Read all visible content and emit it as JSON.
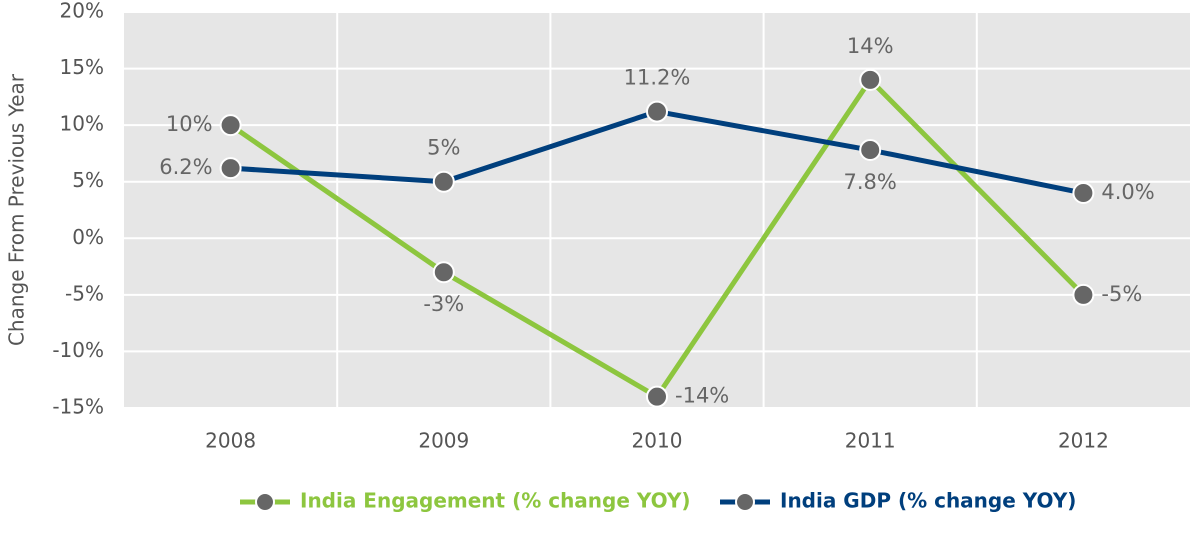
{
  "chart_data": {
    "type": "line",
    "y_label": "Change From Previous Year",
    "categories": [
      "2008",
      "2009",
      "2010",
      "2011",
      "2012"
    ],
    "series": [
      {
        "name": "India Engagement (% change YOY)",
        "color": "#8dc63f",
        "values": [
          10,
          -3,
          -14,
          14,
          -5
        ],
        "value_labels": [
          "10%",
          "-3%",
          "-14%",
          "14%",
          "-5%"
        ]
      },
      {
        "name": "India GDP (% change YOY)",
        "color": "#003f7d",
        "values": [
          6.2,
          5,
          11.2,
          7.8,
          4.0
        ],
        "value_labels": [
          "6.2%",
          "5%",
          "11.2%",
          "7.8%",
          "4.0%"
        ]
      }
    ],
    "ylim": [
      -15,
      20
    ],
    "yticks": [
      {
        "value": -15,
        "label": "-15%"
      },
      {
        "value": -10,
        "label": "-10%"
      },
      {
        "value": -5,
        "label": "-5%"
      },
      {
        "value": 0,
        "label": "0%"
      },
      {
        "value": 5,
        "label": "5%"
      },
      {
        "value": 10,
        "label": "10%"
      },
      {
        "value": 15,
        "label": "15%"
      },
      {
        "value": 20,
        "label": "20%"
      }
    ],
    "grid": true,
    "legend": "bottom",
    "marker_color": "#666666",
    "plot_background": "#e6e6e6"
  }
}
